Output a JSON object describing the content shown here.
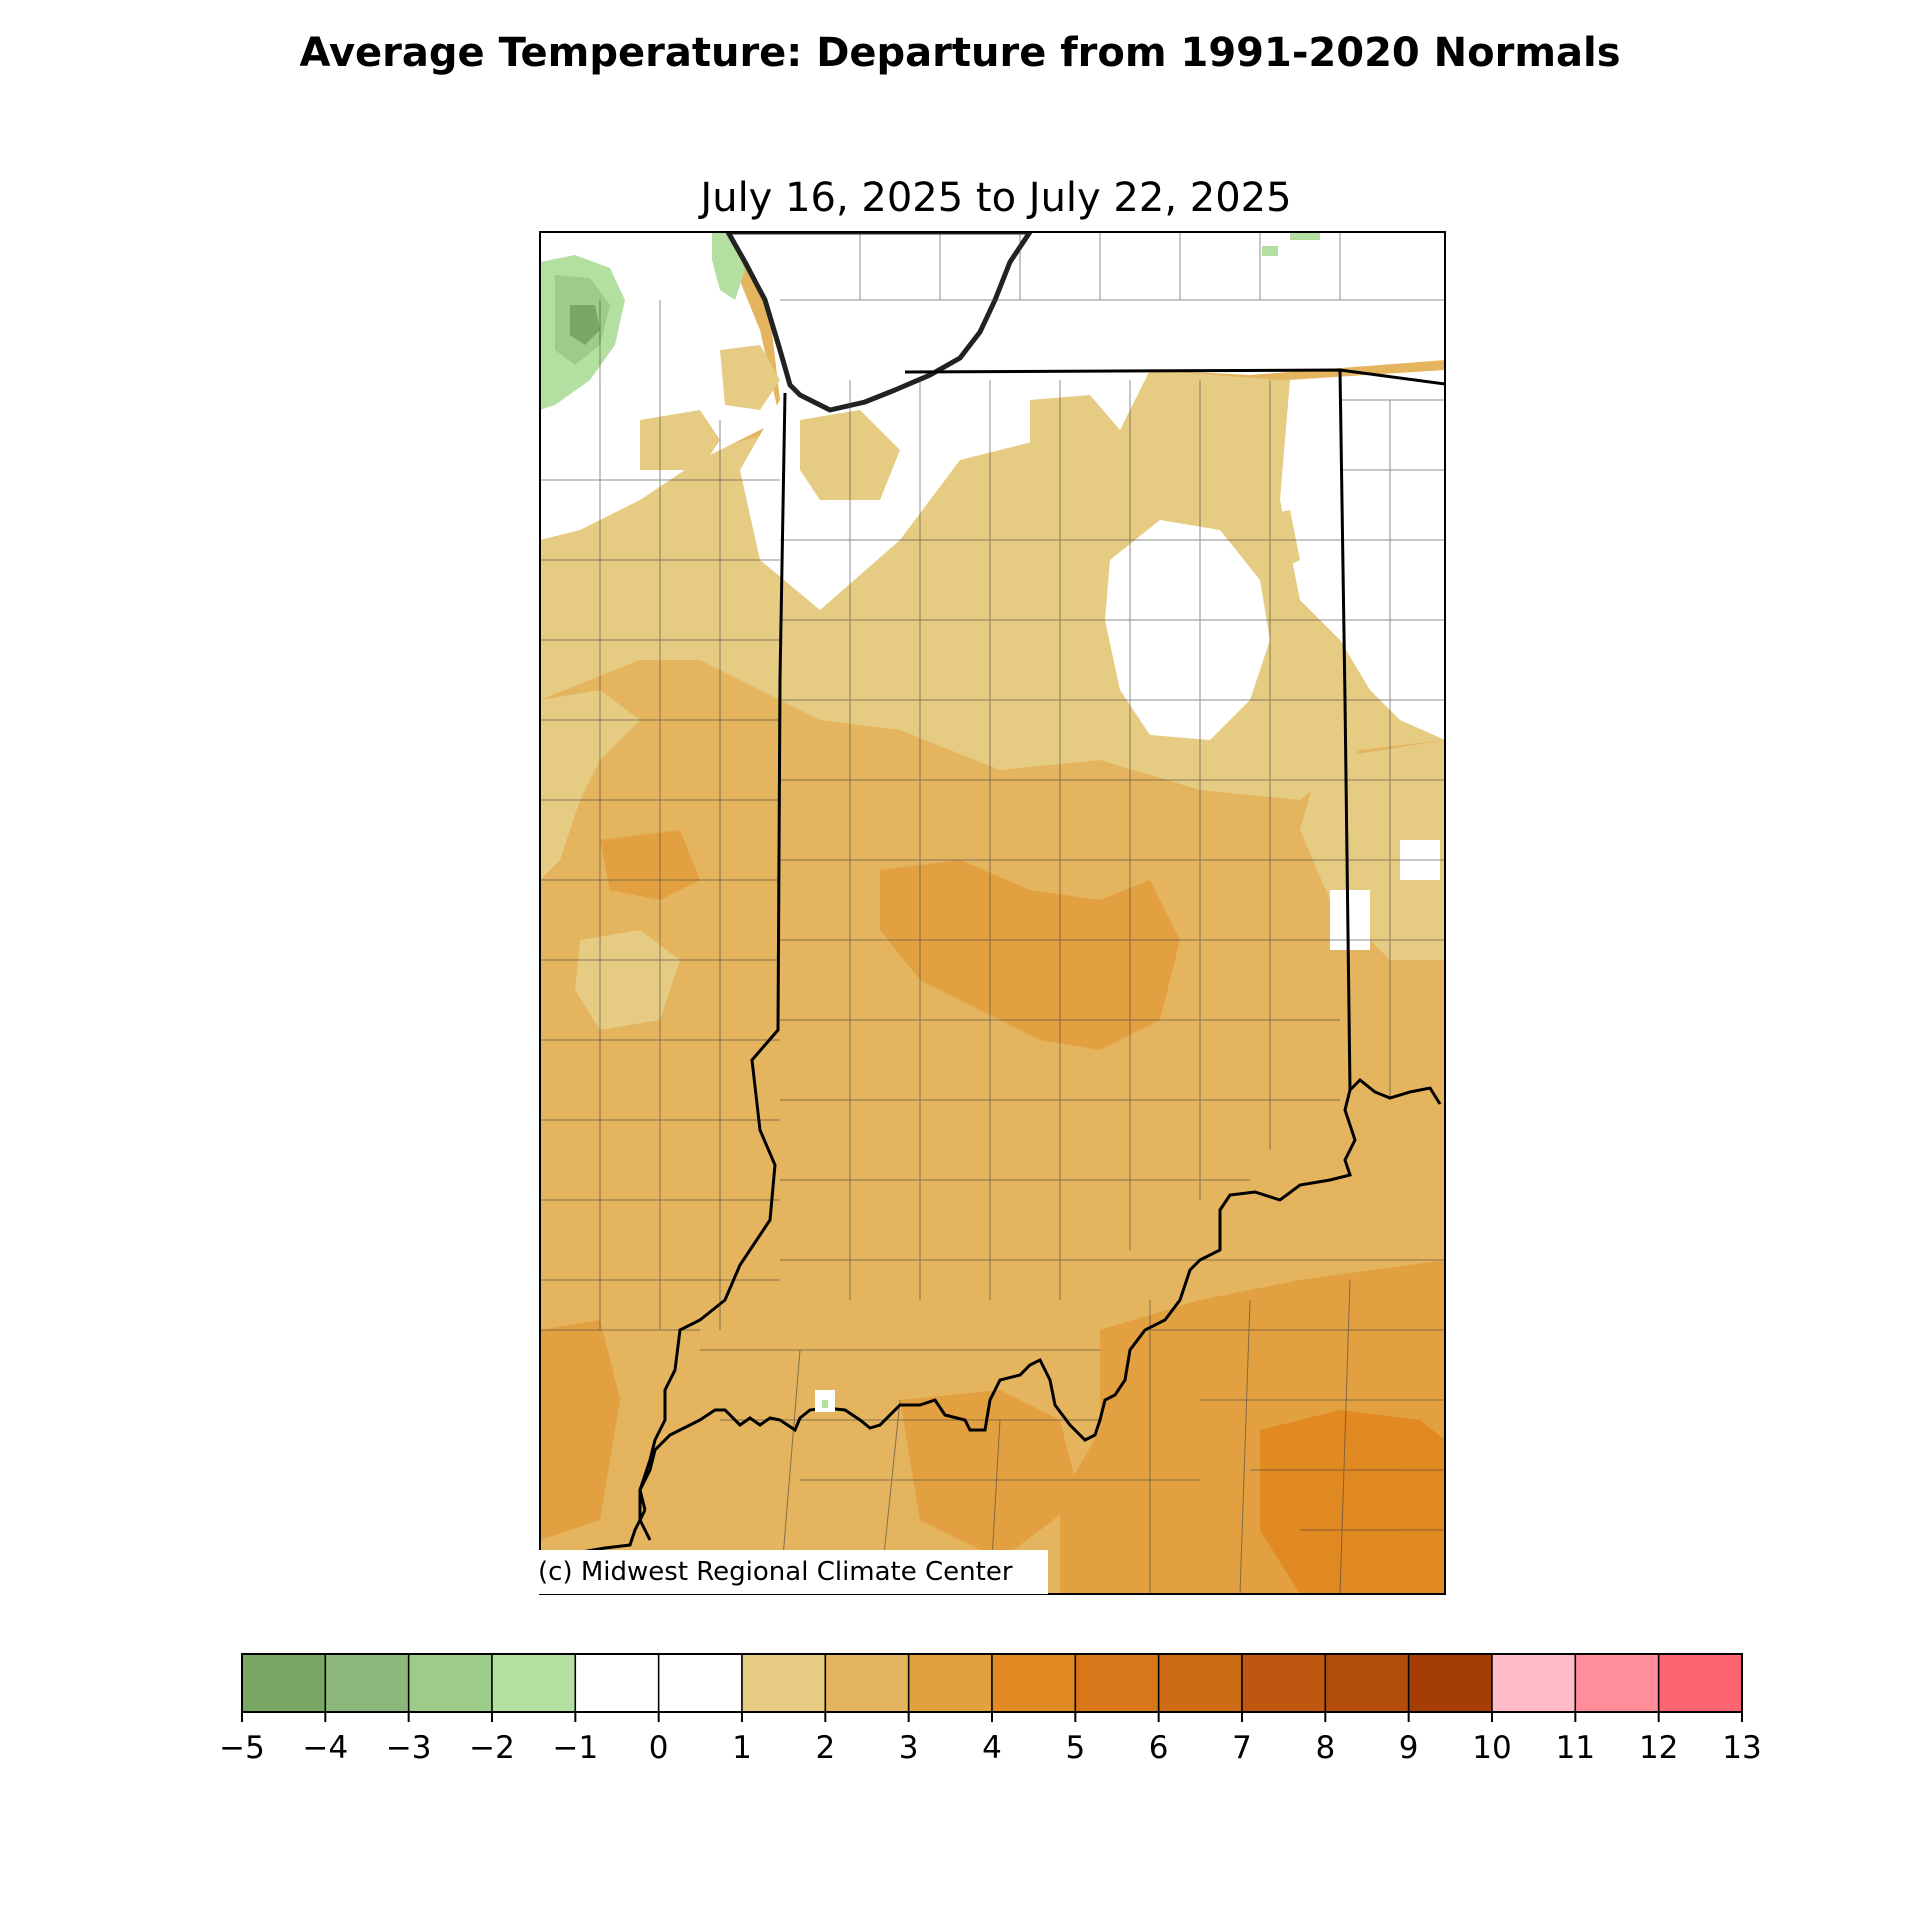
{
  "title": "Average Temperature: Departure from 1991-2020 Normals",
  "subtitle": "July 16, 2025 to July 22, 2025",
  "credit": "(c) Midwest Regional Climate Center",
  "legend": {
    "bounds": [
      -5,
      -4,
      -3,
      -2,
      -1,
      0,
      1,
      2,
      3,
      4,
      5,
      6,
      7,
      8,
      9,
      10,
      11,
      12,
      13
    ],
    "tick_labels": [
      "−5",
      "−4",
      "−3",
      "−2",
      "−1",
      "0",
      "1",
      "2",
      "3",
      "4",
      "5",
      "6",
      "7",
      "8",
      "9",
      "10",
      "11",
      "12",
      "13"
    ],
    "colors": [
      "#78a664",
      "#8bb87a",
      "#9ccc87",
      "#b3e0a0",
      "#ffffff",
      "#ffffff",
      "#e6cb82",
      "#e4b45e",
      "#e3a040",
      "#e28a22",
      "#d8771a",
      "#cd6a14",
      "#be5810",
      "#b24c0a",
      "#a43e06",
      "#ffbcc8",
      "#ff8e9a",
      "#ff6472"
    ]
  },
  "map": {
    "region": "Indiana and surrounding areas",
    "colors": {
      "green_dark": "#78a664",
      "green_light": "#b3e0a0",
      "white": "#ffffff",
      "tan": "#e6cb82",
      "light_orange": "#e4b45e",
      "orange": "#e3a040",
      "deep_orange": "#e28a22",
      "lake": "#ffffff"
    }
  }
}
